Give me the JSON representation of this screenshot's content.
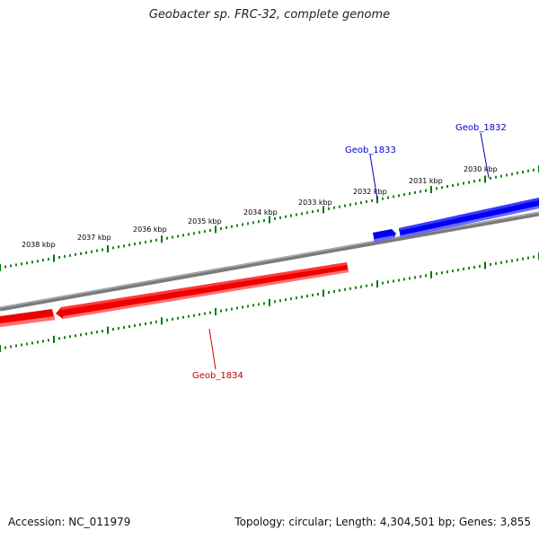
{
  "title": "Geobacter sp. FRC-32, complete genome",
  "footer": {
    "accession": "Accession: NC_011979",
    "summary": "Topology: circular; Length: 4,304,501 bp; Genes: 3,855"
  },
  "scale": {
    "ticks": [
      "2030 kbp",
      "2031 kbp",
      "2032 kbp",
      "2033 kbp",
      "2034 kbp",
      "2035 kbp",
      "2036 kbp",
      "2037 kbp",
      "2038 kbp"
    ]
  },
  "colors": {
    "forward_strand": "#0000ee",
    "reverse_strand": "#ee0000",
    "backbone": "#808080",
    "ticks": "#007700"
  },
  "genes": [
    {
      "name": "Geob_1832",
      "strand": "forward",
      "label_color": "#0000cc"
    },
    {
      "name": "Geob_1833",
      "strand": "forward",
      "label_color": "#0000cc"
    },
    {
      "name": "Geob_1834",
      "strand": "reverse",
      "label_color": "#cc0000"
    }
  ]
}
